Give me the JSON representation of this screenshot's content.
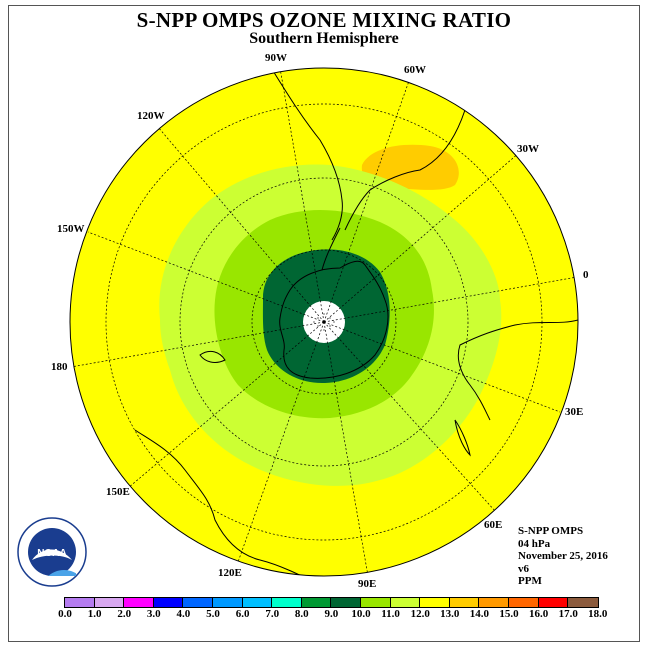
{
  "header": {
    "title": "S-NPP OMPS OZONE MIXING RATIO",
    "subtitle": "Southern Hemisphere"
  },
  "map": {
    "projection": "south-polar-stereographic",
    "fill_background": "#ffff00",
    "contour_levels": [
      {
        "range": "13.0-14.0",
        "color": "#ffcc00"
      },
      {
        "range": "11.0-12.0",
        "color": "#ccff33"
      },
      {
        "range": "10.0-11.0",
        "color": "#99e600"
      },
      {
        "range": "9.0-10.0",
        "color": "#006633"
      }
    ],
    "longitude_labels": [
      "90W",
      "60W",
      "30W",
      "0",
      "30E",
      "60E",
      "90E",
      "120E",
      "150E",
      "180",
      "150W",
      "120W"
    ]
  },
  "info": {
    "instrument": "S-NPP OMPS",
    "pressure": "04 hPa",
    "date": "November 25, 2016",
    "version": "v6",
    "units": "PPM"
  },
  "legend": {
    "colors": [
      "#b57cf0",
      "#d8a8f0",
      "#ff00ff",
      "#0000ff",
      "#0066ff",
      "#0099ff",
      "#00bfff",
      "#00ffcc",
      "#009933",
      "#006633",
      "#99e600",
      "#ccff33",
      "#ffff00",
      "#ffcc00",
      "#ff9900",
      "#ff6600",
      "#ff0000",
      "#8b5a3c"
    ],
    "ticks": [
      "0.0",
      "1.0",
      "2.0",
      "3.0",
      "4.0",
      "5.0",
      "6.0",
      "7.0",
      "8.0",
      "9.0",
      "10.0",
      "11.0",
      "12.0",
      "13.0",
      "14.0",
      "15.0",
      "16.0",
      "17.0",
      "18.0"
    ]
  },
  "logo": {
    "text": "NOAA",
    "ring_text": "NATIONAL OCEANIC AND ATMOSPHERIC ADMINISTRATION · U.S. DEPARTMENT OF COMMERCE"
  }
}
